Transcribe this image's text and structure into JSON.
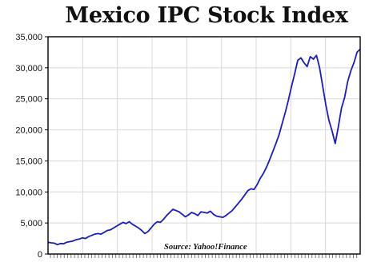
{
  "chart_data": {
    "type": "line",
    "title": "Mexico IPC Stock Index",
    "xlabel": "",
    "ylabel": "",
    "ylim": [
      0,
      35000
    ],
    "xlim": [
      0,
      100
    ],
    "y_ticks": [
      0,
      5000,
      10000,
      15000,
      20000,
      25000,
      30000,
      35000
    ],
    "y_tick_labels": [
      "0",
      "5,000",
      "10,000",
      "15,000",
      "20,000",
      "25,000",
      "30,000",
      "35,000"
    ],
    "grid": true,
    "legend": "none",
    "annotations": [
      "Source: Yahoo!Finance"
    ],
    "series": [
      {
        "color": "#1a1acc",
        "points": [
          [
            0,
            1900
          ],
          [
            1,
            1800
          ],
          [
            2,
            1750
          ],
          [
            3,
            1500
          ],
          [
            4,
            1700
          ],
          [
            5,
            1650
          ],
          [
            6,
            1900
          ],
          [
            7,
            2000
          ],
          [
            8,
            2100
          ],
          [
            9,
            2300
          ],
          [
            10,
            2400
          ],
          [
            11,
            2600
          ],
          [
            12,
            2500
          ],
          [
            13,
            2800
          ],
          [
            14,
            3000
          ],
          [
            15,
            3200
          ],
          [
            16,
            3300
          ],
          [
            17,
            3200
          ],
          [
            18,
            3500
          ],
          [
            19,
            3800
          ],
          [
            20,
            3900
          ],
          [
            21,
            4200
          ],
          [
            22,
            4500
          ],
          [
            23,
            4800
          ],
          [
            24,
            5100
          ],
          [
            25,
            4900
          ],
          [
            26,
            5200
          ],
          [
            27,
            4800
          ],
          [
            28,
            4500
          ],
          [
            29,
            4200
          ],
          [
            30,
            3800
          ],
          [
            31,
            3300
          ],
          [
            32,
            3600
          ],
          [
            33,
            4200
          ],
          [
            34,
            4800
          ],
          [
            35,
            5200
          ],
          [
            36,
            5100
          ],
          [
            37,
            5600
          ],
          [
            38,
            6200
          ],
          [
            39,
            6700
          ],
          [
            40,
            7200
          ],
          [
            41,
            7000
          ],
          [
            42,
            6800
          ],
          [
            43,
            6400
          ],
          [
            44,
            6000
          ],
          [
            45,
            6300
          ],
          [
            46,
            6700
          ],
          [
            47,
            6500
          ],
          [
            48,
            6200
          ],
          [
            49,
            6800
          ],
          [
            50,
            6700
          ],
          [
            51,
            6600
          ],
          [
            52,
            6900
          ],
          [
            53,
            6400
          ],
          [
            54,
            6100
          ],
          [
            55,
            6000
          ],
          [
            56,
            5900
          ],
          [
            57,
            6200
          ],
          [
            58,
            6600
          ],
          [
            59,
            7000
          ],
          [
            60,
            7600
          ],
          [
            61,
            8200
          ],
          [
            62,
            8800
          ],
          [
            63,
            9500
          ],
          [
            64,
            10200
          ],
          [
            65,
            10500
          ],
          [
            66,
            10400
          ],
          [
            67,
            11200
          ],
          [
            68,
            12200
          ],
          [
            69,
            13000
          ],
          [
            70,
            14000
          ],
          [
            71,
            15200
          ],
          [
            72,
            16500
          ],
          [
            73,
            17800
          ],
          [
            74,
            19200
          ],
          [
            75,
            21000
          ],
          [
            76,
            22800
          ],
          [
            77,
            24800
          ],
          [
            78,
            27000
          ],
          [
            79,
            29000
          ],
          [
            80,
            31200
          ],
          [
            81,
            31600
          ],
          [
            82,
            30800
          ],
          [
            83,
            30200
          ],
          [
            84,
            31800
          ],
          [
            85,
            31400
          ],
          [
            86,
            32000
          ],
          [
            87,
            30000
          ],
          [
            88,
            27000
          ],
          [
            89,
            24000
          ],
          [
            90,
            21500
          ],
          [
            91,
            19800
          ],
          [
            92,
            17800
          ],
          [
            93,
            20500
          ],
          [
            94,
            23500
          ],
          [
            95,
            25200
          ],
          [
            96,
            27800
          ],
          [
            97,
            29500
          ],
          [
            98,
            30800
          ],
          [
            99,
            32500
          ],
          [
            100,
            33000
          ]
        ]
      }
    ]
  }
}
